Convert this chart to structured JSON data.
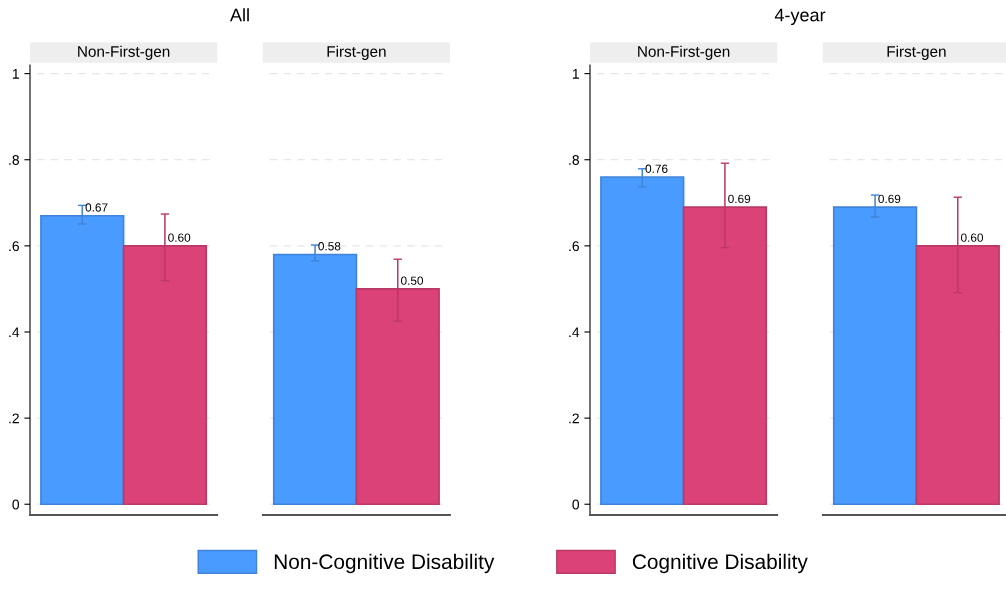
{
  "chart_data": [
    {
      "type": "bar",
      "title": "All",
      "categories": [
        "Non-First-gen",
        "First-gen"
      ],
      "ylim": [
        -0.025,
        1.02
      ],
      "yticks": [
        {
          "value": 0,
          "label": "0"
        },
        {
          "value": 0.2,
          "label": ".2"
        },
        {
          "value": 0.4,
          "label": ".4"
        },
        {
          "value": 0.6,
          "label": ".6"
        },
        {
          "value": 0.8,
          "label": ".8"
        },
        {
          "value": 1,
          "label": "1"
        }
      ],
      "grid": "y",
      "legend": "bottom",
      "series": [
        {
          "name": "Non-Cognitive Disability",
          "color": "#4a9bff",
          "values": [
            0.67,
            0.58
          ],
          "errors": [
            [
              0.651,
              0.694
            ],
            [
              0.565,
              0.602
            ]
          ],
          "value_labels": [
            "0.67",
            "0.58"
          ]
        },
        {
          "name": "Cognitive Disability",
          "color": "#db4277",
          "values": [
            0.6,
            0.5
          ],
          "errors": [
            [
              0.519,
              0.674
            ],
            [
              0.425,
              0.569
            ]
          ],
          "value_labels": [
            "0.60",
            "0.50"
          ]
        }
      ]
    },
    {
      "type": "bar",
      "title": "4-year",
      "categories": [
        "Non-First-gen",
        "First-gen"
      ],
      "ylim": [
        -0.025,
        1.02
      ],
      "yticks": [
        {
          "value": 0,
          "label": "0"
        },
        {
          "value": 0.2,
          "label": ".2"
        },
        {
          "value": 0.4,
          "label": ".4"
        },
        {
          "value": 0.6,
          "label": ".6"
        },
        {
          "value": 0.8,
          "label": ".8"
        },
        {
          "value": 1,
          "label": "1"
        }
      ],
      "grid": "y",
      "series": [
        {
          "name": "Non-Cognitive Disability",
          "color": "#4a9bff",
          "values": [
            0.76,
            0.69
          ],
          "errors": [
            [
              0.737,
              0.779
            ],
            [
              0.667,
              0.718
            ]
          ],
          "value_labels": [
            "0.76",
            "0.69"
          ]
        },
        {
          "name": "Cognitive Disability",
          "color": "#db4277",
          "values": [
            0.69,
            0.6
          ],
          "errors": [
            [
              0.596,
              0.792
            ],
            [
              0.491,
              0.713
            ]
          ],
          "value_labels": [
            "0.69",
            "0.60"
          ]
        }
      ]
    }
  ]
}
